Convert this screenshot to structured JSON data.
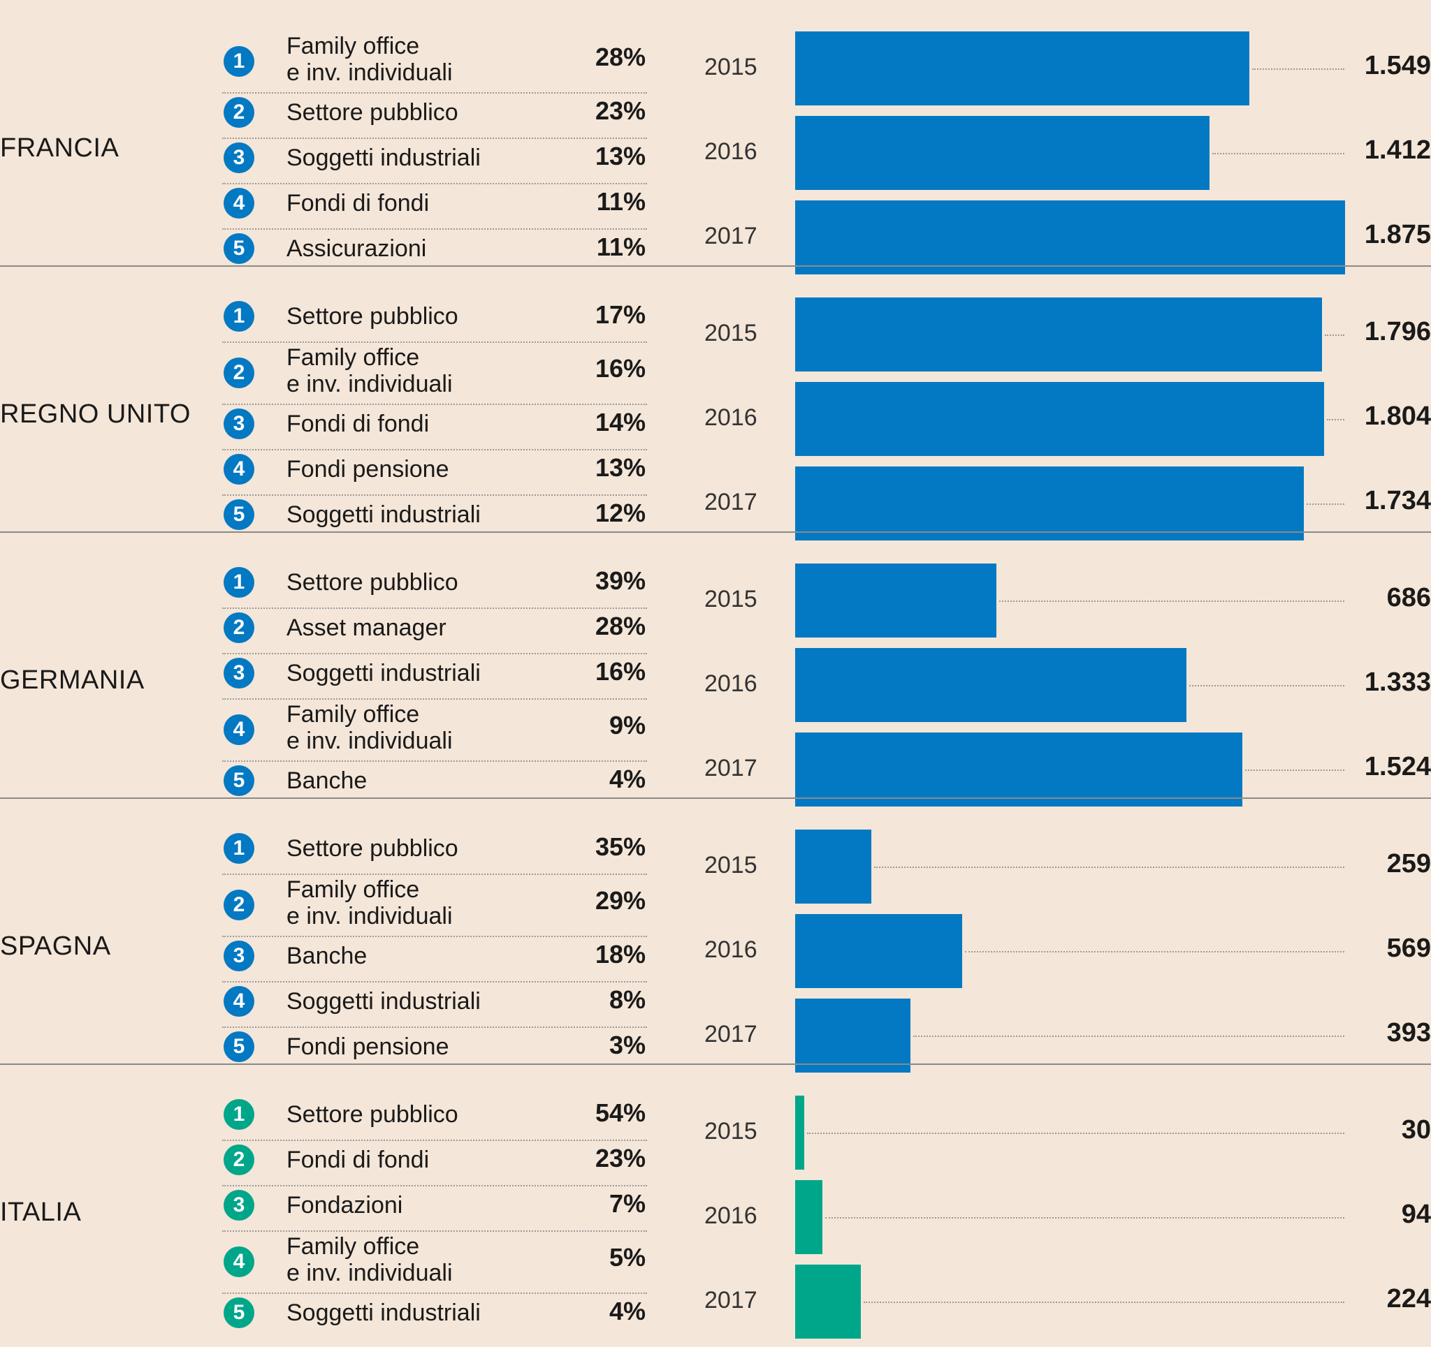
{
  "colors": {
    "background": "#f4e6d8",
    "bar_primary": "#0479c3",
    "bar_highlight": "#00a68a",
    "badge_primary": "#0479c3",
    "badge_highlight": "#00a68a"
  },
  "sections": [
    {
      "country": "FRANCIA",
      "highlight": false,
      "ranks": [
        {
          "rank": "1",
          "label": "Family office\ne inv. individuali",
          "pct": "28%"
        },
        {
          "rank": "2",
          "label": "Settore pubblico",
          "pct": "23%"
        },
        {
          "rank": "3",
          "label": "Soggetti industriali",
          "pct": "13%"
        },
        {
          "rank": "4",
          "label": "Fondi di fondi",
          "pct": "11%"
        },
        {
          "rank": "5",
          "label": "Assicurazioni",
          "pct": "11%"
        }
      ]
    },
    {
      "country": "REGNO UNITO",
      "highlight": false,
      "ranks": [
        {
          "rank": "1",
          "label": "Settore pubblico",
          "pct": "17%"
        },
        {
          "rank": "2",
          "label": "Family office\ne inv. individuali",
          "pct": "16%"
        },
        {
          "rank": "3",
          "label": "Fondi di fondi",
          "pct": "14%"
        },
        {
          "rank": "4",
          "label": "Fondi pensione",
          "pct": "13%"
        },
        {
          "rank": "5",
          "label": "Soggetti industriali",
          "pct": "12%"
        }
      ]
    },
    {
      "country": "GERMANIA",
      "highlight": false,
      "ranks": [
        {
          "rank": "1",
          "label": "Settore pubblico",
          "pct": "39%"
        },
        {
          "rank": "2",
          "label": "Asset manager",
          "pct": "28%"
        },
        {
          "rank": "3",
          "label": "Soggetti industriali",
          "pct": "16%"
        },
        {
          "rank": "4",
          "label": "Family office\ne inv. individuali",
          "pct": "9%"
        },
        {
          "rank": "5",
          "label": "Banche",
          "pct": "4%"
        }
      ]
    },
    {
      "country": "SPAGNA",
      "highlight": false,
      "ranks": [
        {
          "rank": "1",
          "label": "Settore pubblico",
          "pct": "35%"
        },
        {
          "rank": "2",
          "label": "Family office\ne inv. individuali",
          "pct": "29%"
        },
        {
          "rank": "3",
          "label": "Banche",
          "pct": "18%"
        },
        {
          "rank": "4",
          "label": "Soggetti industriali",
          "pct": "8%"
        },
        {
          "rank": "5",
          "label": "Fondi pensione",
          "pct": "3%"
        }
      ]
    },
    {
      "country": "ITALIA",
      "highlight": true,
      "ranks": [
        {
          "rank": "1",
          "label": "Settore pubblico",
          "pct": "54%"
        },
        {
          "rank": "2",
          "label": "Fondi di fondi",
          "pct": "23%"
        },
        {
          "rank": "3",
          "label": "Fondazioni",
          "pct": "7%"
        },
        {
          "rank": "4",
          "label": "Family office\ne inv. individuali",
          "pct": "5%"
        },
        {
          "rank": "5",
          "label": "Soggetti industriali",
          "pct": "4%"
        }
      ]
    }
  ],
  "chart_data": {
    "type": "bar",
    "orientation": "horizontal",
    "xlim": [
      0,
      1875
    ],
    "categories": [
      "2015",
      "2016",
      "2017"
    ],
    "series": [
      {
        "name": "FRANCIA",
        "values": [
          1549,
          1412,
          1875
        ],
        "labels": [
          "1.549",
          "1.412",
          "1.875"
        ]
      },
      {
        "name": "REGNO UNITO",
        "values": [
          1796,
          1804,
          1734
        ],
        "labels": [
          "1.796",
          "1.804",
          "1.734"
        ]
      },
      {
        "name": "GERMANIA",
        "values": [
          686,
          1333,
          1524
        ],
        "labels": [
          "686",
          "1.333",
          "1.524"
        ]
      },
      {
        "name": "SPAGNA",
        "values": [
          259,
          569,
          393
        ],
        "labels": [
          "259",
          "569",
          "393"
        ]
      },
      {
        "name": "ITALIA",
        "values": [
          30,
          94,
          224
        ],
        "labels": [
          "30",
          "94",
          "224"
        ]
      }
    ]
  }
}
